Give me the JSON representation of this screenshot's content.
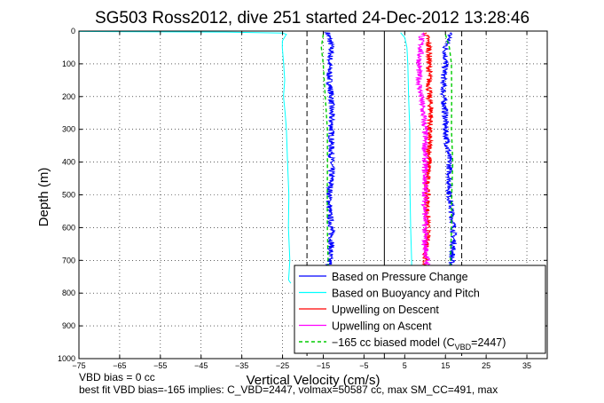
{
  "chart_data": {
    "type": "line",
    "title": "SG503 Ross2012, dive 251 started 24-Dec-2012 13:28:46",
    "xlabel": "Vertical Velocity (cm/s)",
    "ylabel": "Depth (m)",
    "xlim": [
      -75,
      40
    ],
    "ylim": [
      1000,
      0
    ],
    "y_reversed": true,
    "grid": true,
    "xticks": [
      -75,
      -65,
      -55,
      -45,
      -35,
      -25,
      -15,
      -5,
      5,
      15,
      25,
      35
    ],
    "yticks": [
      0,
      100,
      200,
      300,
      400,
      500,
      600,
      700,
      800,
      900,
      1000
    ],
    "legend": {
      "placement": "bottom-right",
      "entries": [
        {
          "label": "Based on Pressure Change",
          "color": "#0000ff",
          "style": "solid"
        },
        {
          "label": "Based on Buoyancy and Pitch",
          "color": "#00ffff",
          "style": "solid"
        },
        {
          "label": "Upwelling on Descent",
          "color": "#ff0000",
          "style": "solid"
        },
        {
          "label": "Upwelling on Ascent",
          "color": "#ff00ff",
          "style": "solid"
        },
        {
          "label": "−165 cc biased model (C",
          "sub": "VBD",
          "suffix": "=2447)",
          "color": "#00cc00",
          "style": "dashed"
        }
      ]
    },
    "series": [
      {
        "name": "Based on Pressure Change",
        "color": "#0000ff",
        "noise": 0.7,
        "points": [
          [
            -14,
            5
          ],
          [
            -13.5,
            20
          ],
          [
            -13,
            50
          ],
          [
            -13.5,
            100
          ],
          [
            -13.5,
            150
          ],
          [
            -13,
            200
          ],
          [
            -13,
            250
          ],
          [
            -13,
            300
          ],
          [
            -13,
            350
          ],
          [
            -13,
            400
          ],
          [
            -13,
            450
          ],
          [
            -13.5,
            500
          ],
          [
            -13.5,
            550
          ],
          [
            -13,
            600
          ],
          [
            -13,
            650
          ],
          [
            -13.5,
            700
          ],
          [
            -13.5,
            720
          ]
        ]
      },
      {
        "name": "Based on Pressure Change",
        "color": "#0000ff",
        "noise": 0.7,
        "points": [
          [
            16,
            5
          ],
          [
            16,
            20
          ],
          [
            15,
            50
          ],
          [
            15,
            100
          ],
          [
            14.5,
            150
          ],
          [
            14.5,
            200
          ],
          [
            15,
            250
          ],
          [
            15,
            300
          ],
          [
            15.5,
            350
          ],
          [
            16,
            400
          ],
          [
            16,
            450
          ],
          [
            16,
            500
          ],
          [
            16.5,
            550
          ],
          [
            17,
            600
          ],
          [
            17,
            650
          ],
          [
            16.5,
            700
          ],
          [
            16.5,
            720
          ]
        ]
      },
      {
        "name": "Based on Buoyancy and Pitch",
        "color": "#00ffff",
        "noise": 0.15,
        "points": [
          [
            -75,
            1
          ],
          [
            -40,
            3
          ],
          [
            -25,
            6
          ],
          [
            -24,
            10
          ],
          [
            -24.5,
            20
          ],
          [
            -25,
            30
          ],
          [
            -25,
            50
          ],
          [
            -24.8,
            100
          ],
          [
            -24.5,
            150
          ],
          [
            -24.8,
            200
          ],
          [
            -24.4,
            250
          ],
          [
            -24,
            300
          ],
          [
            -23.8,
            400
          ],
          [
            -23.5,
            500
          ],
          [
            -23.5,
            600
          ],
          [
            -23.2,
            700
          ],
          [
            -23.5,
            760
          ],
          [
            -23,
            770
          ]
        ]
      },
      {
        "name": "Based on Buoyancy and Pitch",
        "color": "#00ffff",
        "noise": 0.1,
        "points": [
          [
            4,
            5
          ],
          [
            5,
            20
          ],
          [
            5.5,
            50
          ],
          [
            5.8,
            100
          ],
          [
            6,
            200
          ],
          [
            6.2,
            300
          ],
          [
            6.2,
            400
          ],
          [
            6.3,
            500
          ],
          [
            6.5,
            600
          ],
          [
            6.7,
            700
          ],
          [
            6.7,
            720
          ]
        ]
      },
      {
        "name": "Upwelling on Descent",
        "color": "#ff0000",
        "noise": 0.7,
        "points": [
          [
            10,
            5
          ],
          [
            10.5,
            20
          ],
          [
            11,
            50
          ],
          [
            11,
            100
          ],
          [
            11,
            150
          ],
          [
            11,
            200
          ],
          [
            11.5,
            250
          ],
          [
            11,
            300
          ],
          [
            11,
            350
          ],
          [
            11,
            400
          ],
          [
            10.5,
            450
          ],
          [
            10.5,
            500
          ],
          [
            10.5,
            550
          ],
          [
            10.5,
            600
          ],
          [
            10.5,
            650
          ],
          [
            10,
            700
          ],
          [
            10,
            720
          ]
        ]
      },
      {
        "name": "Upwelling on Ascent",
        "color": "#ff00ff",
        "noise": 0.7,
        "points": [
          [
            10,
            5
          ],
          [
            9,
            20
          ],
          [
            9,
            50
          ],
          [
            8.5,
            100
          ],
          [
            8.5,
            150
          ],
          [
            9,
            200
          ],
          [
            9.5,
            250
          ],
          [
            10,
            300
          ],
          [
            10,
            350
          ],
          [
            10,
            400
          ],
          [
            10,
            450
          ],
          [
            10,
            500
          ],
          [
            10,
            550
          ],
          [
            10,
            600
          ],
          [
            10,
            650
          ],
          [
            10.5,
            700
          ],
          [
            10.5,
            720
          ]
        ]
      },
      {
        "name": "−165 cc biased model",
        "color": "#00cc00",
        "noise": 0.1,
        "dashed": true,
        "points": [
          [
            -15,
            10
          ],
          [
            -15.5,
            50
          ],
          [
            -15,
            100
          ],
          [
            -14.5,
            200
          ],
          [
            -14,
            300
          ],
          [
            -14,
            400
          ],
          [
            -14,
            500
          ],
          [
            -14,
            600
          ],
          [
            -13.8,
            700
          ],
          [
            -13.8,
            720
          ]
        ]
      },
      {
        "name": "−165 cc biased model",
        "color": "#00cc00",
        "noise": 0.1,
        "dashed": true,
        "points": [
          [
            15,
            10
          ],
          [
            16,
            50
          ],
          [
            16.5,
            100
          ],
          [
            16.5,
            200
          ],
          [
            16.5,
            300
          ],
          [
            16.8,
            400
          ],
          [
            16.5,
            500
          ],
          [
            16.5,
            600
          ],
          [
            16.2,
            700
          ],
          [
            16.2,
            720
          ]
        ]
      }
    ],
    "reference_lines": [
      {
        "x": -19,
        "color": "#000000",
        "style": "dashed"
      },
      {
        "x": 0,
        "color": "#000000",
        "style": "solid"
      },
      {
        "x": 19,
        "color": "#000000",
        "style": "dashed"
      }
    ]
  },
  "notes": {
    "line1": "VBD bias = 0 cc",
    "line2": "best fit VBD bias=-165 implies: C_VBD=2447, volmax=50587 cc, max SM_CC=491, max"
  }
}
